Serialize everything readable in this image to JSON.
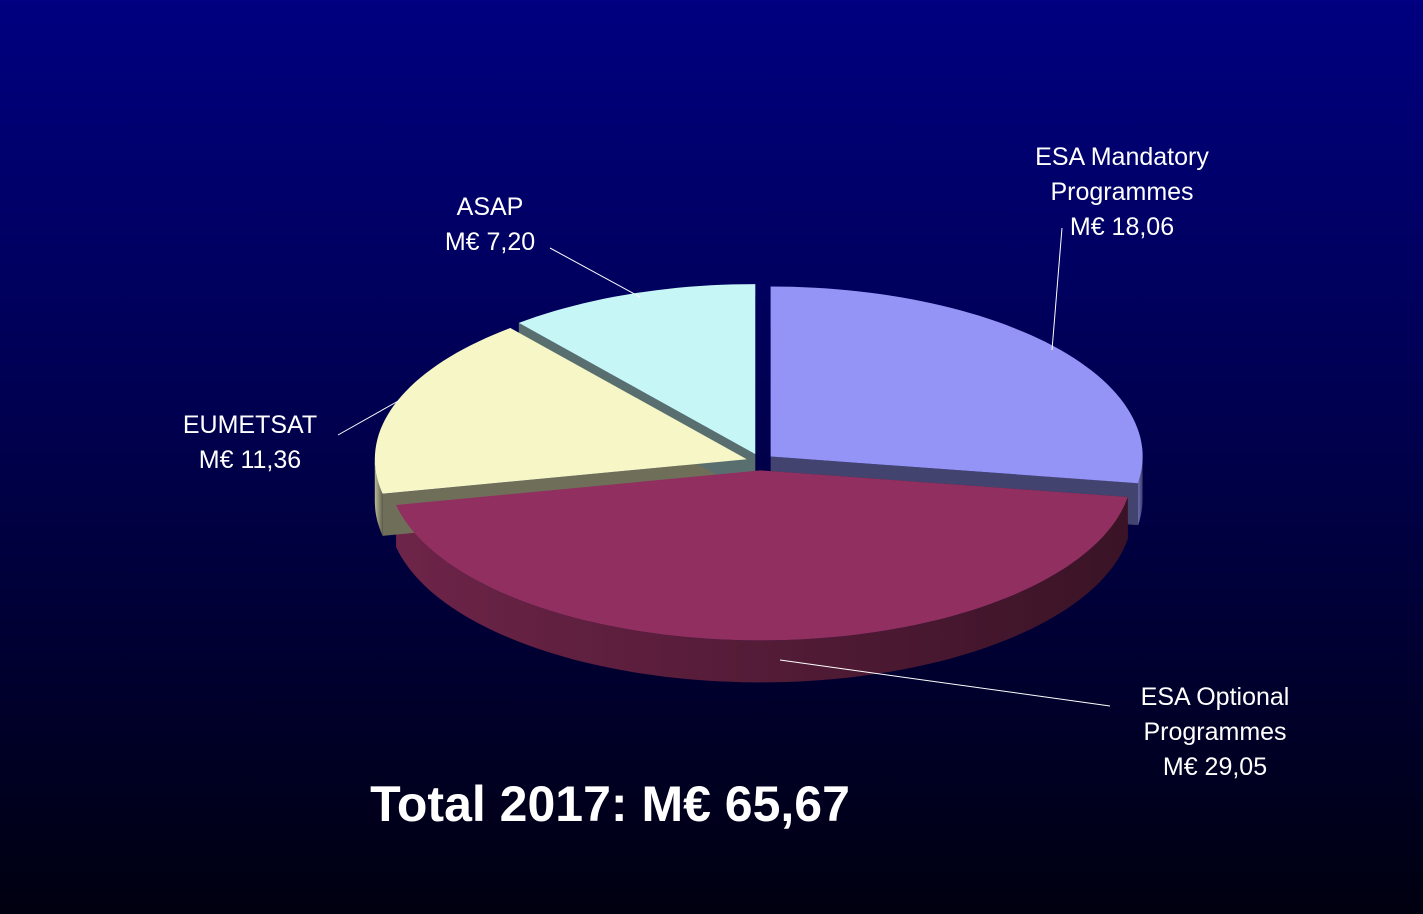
{
  "chart_data": {
    "type": "pie",
    "annotation": "Total 2017: M€ 65,67",
    "categories": [
      "ESA Mandatory Programmes",
      "ESA Optional Programmes",
      "EUMETSAT",
      "ASAP"
    ],
    "values": [
      18.06,
      29.05,
      11.36,
      7.2
    ],
    "value_labels": [
      "M€ 18,06",
      "M€ 29,05",
      "M€ 11,36",
      "M€ 7,20"
    ],
    "colors": [
      "#9494f6",
      "#913060",
      "#f6f6c6",
      "#c6f6f6"
    ]
  }
}
